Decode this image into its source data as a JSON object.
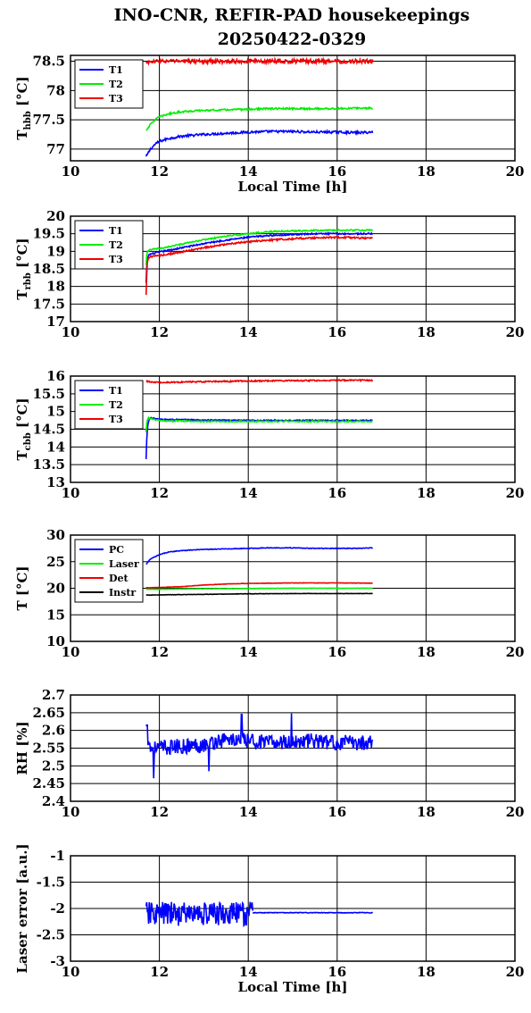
{
  "title_line1": "INO-CNR, REFIR-PAD housekeepings",
  "title_line2": "20250422-0329",
  "colors": {
    "blue": "#0000ff",
    "green": "#00ee00",
    "red": "#ee0000",
    "black": "#000000"
  },
  "chart_data": [
    {
      "type": "line",
      "ylabel_main": "T",
      "ylabel_sub": "hbb",
      "ylabel_suffix": " [°C]",
      "xlabel": "Local Time [h]",
      "xlim": [
        10,
        20
      ],
      "ylim": [
        76.8,
        78.6
      ],
      "xticks": [
        10,
        12,
        14,
        16,
        18,
        20
      ],
      "yticks": [
        77,
        77.5,
        78,
        78.5
      ],
      "grid": true,
      "legend": "top-left",
      "series": [
        {
          "name": "T1",
          "color": "#0000ff",
          "x": [
            11.7,
            11.8,
            11.9,
            12.0,
            12.2,
            12.5,
            13.0,
            13.5,
            14.0,
            14.5,
            15.0,
            15.5,
            16.0,
            16.5,
            16.8
          ],
          "y": [
            76.87,
            77.0,
            77.08,
            77.13,
            77.18,
            77.22,
            77.25,
            77.27,
            77.29,
            77.3,
            77.3,
            77.29,
            77.29,
            77.28,
            77.29
          ],
          "noise": 0.02
        },
        {
          "name": "T2",
          "color": "#00ee00",
          "x": [
            11.7,
            11.8,
            11.9,
            12.0,
            12.2,
            12.5,
            13.0,
            13.5,
            14.0,
            14.5,
            15.0,
            15.5,
            16.0,
            16.5,
            16.8
          ],
          "y": [
            77.32,
            77.42,
            77.5,
            77.55,
            77.6,
            77.64,
            77.66,
            77.67,
            77.68,
            77.69,
            77.69,
            77.69,
            77.69,
            77.7,
            77.7
          ],
          "noise": 0.015
        },
        {
          "name": "T3",
          "color": "#ee0000",
          "x": [
            11.7,
            12.0,
            13.0,
            14.0,
            15.0,
            16.0,
            16.8
          ],
          "y": [
            78.48,
            78.5,
            78.5,
            78.5,
            78.5,
            78.5,
            78.5
          ],
          "noise": 0.035
        }
      ]
    },
    {
      "type": "line",
      "ylabel_main": "T",
      "ylabel_sub": "rbb",
      "ylabel_suffix": " [°C]",
      "xlabel": "",
      "xlim": [
        10,
        20
      ],
      "ylim": [
        17,
        20
      ],
      "xticks": [
        10,
        12,
        14,
        16,
        18,
        20
      ],
      "yticks": [
        17,
        17.5,
        18,
        18.5,
        19,
        19.5,
        20
      ],
      "grid": true,
      "legend": "top-left",
      "series": [
        {
          "name": "T1",
          "color": "#0000ff",
          "x": [
            11.7,
            11.72,
            11.75,
            11.8,
            12.0,
            12.5,
            13.0,
            13.5,
            14.0,
            14.5,
            15.0,
            15.5,
            16.0,
            16.5,
            16.8
          ],
          "y": [
            18.1,
            18.7,
            18.88,
            18.92,
            18.98,
            19.1,
            19.22,
            19.32,
            19.4,
            19.45,
            19.48,
            19.5,
            19.5,
            19.5,
            19.5
          ],
          "noise": 0.02
        },
        {
          "name": "T2",
          "color": "#00ee00",
          "x": [
            11.7,
            11.72,
            11.75,
            11.8,
            12.0,
            12.5,
            13.0,
            13.5,
            14.0,
            14.5,
            15.0,
            15.5,
            16.0,
            16.5,
            16.8
          ],
          "y": [
            18.6,
            18.95,
            19.02,
            19.05,
            19.08,
            19.2,
            19.33,
            19.43,
            19.5,
            19.56,
            19.58,
            19.6,
            19.6,
            19.6,
            19.6
          ],
          "noise": 0.02
        },
        {
          "name": "T3",
          "color": "#ee0000",
          "x": [
            11.7,
            11.71,
            11.73,
            11.75,
            11.8,
            12.0,
            12.5,
            13.0,
            13.5,
            14.0,
            14.5,
            15.0,
            15.5,
            16.0,
            16.5,
            16.8
          ],
          "y": [
            17.75,
            18.2,
            18.7,
            18.8,
            18.85,
            18.88,
            18.98,
            19.1,
            19.2,
            19.27,
            19.32,
            19.36,
            19.38,
            19.4,
            19.38,
            19.38
          ],
          "noise": 0.025
        }
      ]
    },
    {
      "type": "line",
      "ylabel_main": "T",
      "ylabel_sub": "cbb",
      "ylabel_suffix": " [°C]",
      "xlabel": "",
      "xlim": [
        10,
        20
      ],
      "ylim": [
        13,
        16
      ],
      "xticks": [
        10,
        12,
        14,
        16,
        18,
        20
      ],
      "yticks": [
        13,
        13.5,
        14,
        14.5,
        15,
        15.5,
        16
      ],
      "grid": true,
      "legend": "top-left",
      "series": [
        {
          "name": "T1",
          "color": "#0000ff",
          "x": [
            11.7,
            11.71,
            11.73,
            11.75,
            11.78,
            11.8,
            12.0,
            13.0,
            14.0,
            15.0,
            16.0,
            16.8
          ],
          "y": [
            13.65,
            14.1,
            14.5,
            14.7,
            14.8,
            14.82,
            14.78,
            14.76,
            14.75,
            14.75,
            14.75,
            14.75
          ],
          "noise": 0.015
        },
        {
          "name": "T2",
          "color": "#00ee00",
          "x": [
            11.7,
            11.72,
            11.75,
            11.8,
            12.0,
            13.0,
            14.0,
            15.0,
            16.0,
            16.8
          ],
          "y": [
            14.4,
            14.75,
            14.82,
            14.8,
            14.74,
            14.72,
            14.72,
            14.72,
            14.72,
            14.72
          ],
          "noise": 0.02
        },
        {
          "name": "T3",
          "color": "#ee0000",
          "x": [
            11.7,
            12.0,
            13.0,
            14.0,
            15.0,
            16.0,
            16.8
          ],
          "y": [
            15.85,
            15.82,
            15.84,
            15.86,
            15.87,
            15.88,
            15.88
          ],
          "noise": 0.02
        }
      ]
    },
    {
      "type": "line",
      "ylabel_main": "T",
      "ylabel_sub": "",
      "ylabel_suffix": " [°C]",
      "xlabel": "",
      "xlim": [
        10,
        20
      ],
      "ylim": [
        10,
        30
      ],
      "xticks": [
        10,
        12,
        14,
        16,
        18,
        20
      ],
      "yticks": [
        10,
        15,
        20,
        25,
        30
      ],
      "grid": true,
      "legend": "top-left",
      "series": [
        {
          "name": "PC",
          "color": "#0000ff",
          "x": [
            11.7,
            11.8,
            12.0,
            12.2,
            12.5,
            13.0,
            13.5,
            14.0,
            14.5,
            15.0,
            15.5,
            16.0,
            16.5,
            16.8
          ],
          "y": [
            24.5,
            25.5,
            26.3,
            26.8,
            27.1,
            27.3,
            27.4,
            27.5,
            27.6,
            27.6,
            27.5,
            27.5,
            27.5,
            27.6
          ],
          "noise": 0.06
        },
        {
          "name": "Laser",
          "color": "#00ee00",
          "x": [
            11.7,
            12.0,
            12.5,
            13.0,
            14.0,
            15.0,
            16.0,
            16.8
          ],
          "y": [
            19.8,
            19.8,
            19.85,
            19.9,
            19.95,
            20.0,
            20.0,
            20.0
          ],
          "noise": 0.03
        },
        {
          "name": "Det",
          "color": "#ee0000",
          "x": [
            11.7,
            12.0,
            12.5,
            13.0,
            13.5,
            14.0,
            14.5,
            15.0,
            15.5,
            16.0,
            16.8
          ],
          "y": [
            20.1,
            20.15,
            20.3,
            20.6,
            20.8,
            20.9,
            20.95,
            21.0,
            21.0,
            21.0,
            20.95
          ],
          "noise": 0.03
        },
        {
          "name": "Instr",
          "color": "#000000",
          "x": [
            11.7,
            12.0,
            13.0,
            14.0,
            15.0,
            16.0,
            16.8
          ],
          "y": [
            18.7,
            18.75,
            18.85,
            18.95,
            19.0,
            19.0,
            19.0
          ],
          "noise": 0.03
        }
      ]
    },
    {
      "type": "line",
      "ylabel_main": "RH [%]",
      "ylabel_sub": "",
      "ylabel_suffix": "",
      "xlabel": "",
      "xlim": [
        10,
        20
      ],
      "ylim": [
        2.4,
        2.7
      ],
      "xticks": [
        10,
        12,
        14,
        16,
        18,
        20
      ],
      "yticks": [
        2.4,
        2.45,
        2.5,
        2.55,
        2.6,
        2.65,
        2.7
      ],
      "grid": true,
      "legend": "none",
      "series": [
        {
          "name": "",
          "color": "#0000ff",
          "x": [
            11.7,
            11.8,
            12.0,
            12.5,
            13.0,
            13.5,
            14.0,
            14.5,
            15.0,
            15.5,
            16.0,
            16.5,
            16.8
          ],
          "y": [
            2.6,
            2.55,
            2.55,
            2.555,
            2.56,
            2.575,
            2.57,
            2.565,
            2.57,
            2.57,
            2.565,
            2.565,
            2.57
          ],
          "noise": 0.022,
          "spikes": [
            [
              11.72,
              2.615
            ],
            [
              11.87,
              2.465
            ],
            [
              13.85,
              2.645
            ],
            [
              14.97,
              2.648
            ],
            [
              13.12,
              2.485
            ]
          ]
        }
      ]
    },
    {
      "type": "line",
      "ylabel_main": "Laser error [a.u.]",
      "ylabel_sub": "",
      "ylabel_suffix": "",
      "xlabel": "Local Time [h]",
      "xlim": [
        10,
        20
      ],
      "ylim": [
        -3,
        -1
      ],
      "xticks": [
        10,
        12,
        14,
        16,
        18,
        20
      ],
      "yticks": [
        -3,
        -2.5,
        -2,
        -1.5,
        -1
      ],
      "grid": true,
      "legend": "none",
      "series": [
        {
          "name": "",
          "color": "#0000ff",
          "x": [
            11.7,
            12.0,
            12.5,
            13.0,
            13.5,
            14.0,
            14.1
          ],
          "y": [
            -2.1,
            -2.1,
            -2.1,
            -2.1,
            -2.1,
            -2.1,
            -2.1
          ],
          "noise": 0.23
        },
        {
          "name": "",
          "color": "#0000ff",
          "x": [
            14.1,
            14.5,
            15.0,
            15.5,
            16.0,
            16.5,
            16.8
          ],
          "y": [
            -2.08,
            -2.08,
            -2.08,
            -2.08,
            -2.08,
            -2.08,
            -2.08
          ],
          "noise": 0.006
        }
      ]
    }
  ]
}
